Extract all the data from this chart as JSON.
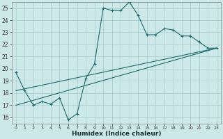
{
  "xlabel": "Humidex (Indice chaleur)",
  "background_color": "#cce8e8",
  "grid_color": "#aacccc",
  "line_color": "#1a6b6b",
  "xlim": [
    -0.5,
    23.5
  ],
  "ylim": [
    15.5,
    25.5
  ],
  "yticks": [
    16,
    17,
    18,
    19,
    20,
    21,
    22,
    23,
    24,
    25
  ],
  "xticks": [
    0,
    1,
    2,
    3,
    4,
    5,
    6,
    7,
    8,
    9,
    10,
    11,
    12,
    13,
    14,
    15,
    16,
    17,
    18,
    19,
    20,
    21,
    22,
    23
  ],
  "series1_x": [
    0,
    1,
    2,
    3,
    4,
    5,
    6,
    7,
    8,
    9,
    10,
    11,
    12,
    13,
    14,
    15,
    16,
    17,
    18,
    19,
    20,
    21,
    22,
    23
  ],
  "series1_y": [
    19.7,
    18.2,
    17.0,
    17.3,
    17.1,
    17.6,
    15.8,
    16.3,
    19.2,
    20.4,
    25.0,
    24.8,
    24.8,
    25.5,
    24.4,
    22.8,
    22.8,
    23.3,
    23.2,
    22.7,
    22.7,
    22.2,
    21.7,
    21.7
  ],
  "line2_x": [
    0,
    23
  ],
  "line2_y": [
    17.0,
    21.7
  ],
  "line3_x": [
    0,
    23
  ],
  "line3_y": [
    18.2,
    21.7
  ]
}
